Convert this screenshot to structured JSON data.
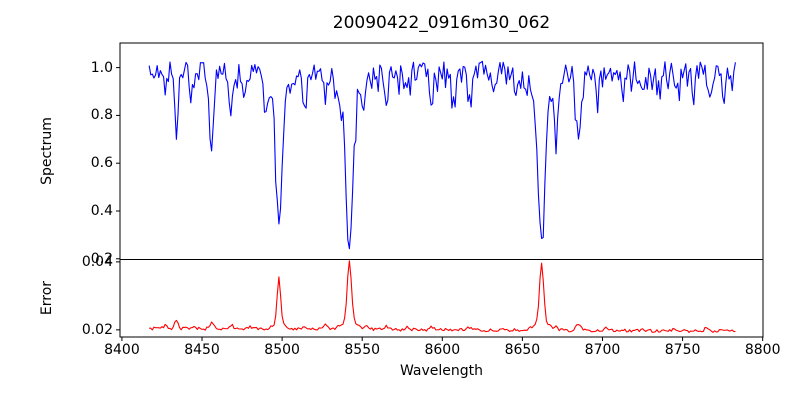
{
  "style": {
    "background": "#ffffff",
    "frame_color": "#000000",
    "text_color": "#000000"
  },
  "chart_data": {
    "type": "line",
    "title": "20090422_0916m30_062",
    "xlabel": "Wavelength",
    "xlim": [
      8398.8,
      8800.2
    ],
    "x_ticks": [
      {
        "v": 8400,
        "label": "8400"
      },
      {
        "v": 8450,
        "label": "8450"
      },
      {
        "v": 8500,
        "label": "8500"
      },
      {
        "v": 8550,
        "label": "8550"
      },
      {
        "v": 8600,
        "label": "8600"
      },
      {
        "v": 8650,
        "label": "8650"
      },
      {
        "v": 8700,
        "label": "8700"
      },
      {
        "v": 8750,
        "label": "8750"
      },
      {
        "v": 8800,
        "label": "8800"
      }
    ],
    "grid": false,
    "legend": false,
    "subplots": [
      {
        "ylabel": "Spectrum",
        "ylim": [
          0.197,
          1.103
        ],
        "y_ticks": [
          {
            "v": 1.0,
            "label": "1.0"
          },
          {
            "v": 0.8,
            "label": "0.8"
          },
          {
            "v": 0.6,
            "label": "0.6"
          },
          {
            "v": 0.4,
            "label": "0.4"
          },
          {
            "v": 0.2,
            "label": "0.2"
          }
        ],
        "series": {
          "name": "spectrum",
          "color": "#0000ff",
          "x_start": 8417,
          "x_end": 8783,
          "step": 1.0,
          "seed": 20090422,
          "baseline_start": 0.99,
          "baseline_end": 0.985,
          "noise": 0.04,
          "dip_prob": 0.3,
          "dip_extra": 0.08,
          "features": [
            {
              "center": 8427,
              "amp": -0.1,
              "width": 1.0
            },
            {
              "center": 8434,
              "amp": -0.26,
              "width": 1.2
            },
            {
              "center": 8443,
              "amp": -0.1,
              "width": 1.0
            },
            {
              "center": 8456,
              "amp": -0.33,
              "width": 1.4
            },
            {
              "center": 8468,
              "amp": -0.17,
              "width": 1.1
            },
            {
              "center": 8476,
              "amp": -0.1,
              "width": 1.0
            },
            {
              "center": 8490,
              "amp": -0.09,
              "width": 1.0
            },
            {
              "center": 8498,
              "amp": -0.5,
              "width": 1.8
            },
            {
              "center": 8498,
              "amp": -0.13,
              "width": 5.0
            },
            {
              "center": 8514,
              "amp": -0.16,
              "width": 1.1
            },
            {
              "center": 8527,
              "amp": -0.12,
              "width": 1.1
            },
            {
              "center": 8536,
              "amp": -0.1,
              "width": 1.0
            },
            {
              "center": 8542,
              "amp": -0.6,
              "width": 2.0
            },
            {
              "center": 8542,
              "amp": -0.13,
              "width": 6.0
            },
            {
              "center": 8551,
              "amp": -0.1,
              "width": 1.0
            },
            {
              "center": 8565,
              "amp": -0.12,
              "width": 1.1
            },
            {
              "center": 8578,
              "amp": -0.11,
              "width": 1.0
            },
            {
              "center": 8593,
              "amp": -0.13,
              "width": 1.1
            },
            {
              "center": 8607,
              "amp": -0.11,
              "width": 1.0
            },
            {
              "center": 8617,
              "amp": -0.14,
              "width": 1.1
            },
            {
              "center": 8632,
              "amp": -0.09,
              "width": 1.0
            },
            {
              "center": 8646,
              "amp": -0.11,
              "width": 1.0
            },
            {
              "center": 8662,
              "amp": -0.6,
              "width": 2.0
            },
            {
              "center": 8662,
              "amp": -0.13,
              "width": 6.0
            },
            {
              "center": 8671,
              "amp": -0.22,
              "width": 1.2
            },
            {
              "center": 8685,
              "amp": -0.3,
              "width": 1.6
            },
            {
              "center": 8697,
              "amp": -0.1,
              "width": 1.0
            },
            {
              "center": 8713,
              "amp": -0.11,
              "width": 1.0
            },
            {
              "center": 8725,
              "amp": -0.09,
              "width": 1.0
            },
            {
              "center": 8736,
              "amp": -0.1,
              "width": 1.0
            },
            {
              "center": 8747,
              "amp": -0.09,
              "width": 1.0
            },
            {
              "center": 8757,
              "amp": -0.1,
              "width": 1.0
            },
            {
              "center": 8767,
              "amp": -0.11,
              "width": 1.0
            },
            {
              "center": 8776,
              "amp": -0.12,
              "width": 1.1
            }
          ]
        }
      },
      {
        "ylabel": "Error",
        "ylim": [
          0.0179,
          0.0407
        ],
        "y_ticks": [
          {
            "v": 0.04,
            "label": "0.04"
          },
          {
            "v": 0.02,
            "label": "0.02"
          }
        ],
        "series": {
          "name": "error",
          "color": "#ff0000",
          "x_start": 8417,
          "x_end": 8783,
          "step": 1.0,
          "seed": 916062,
          "baseline_start": 0.0204,
          "baseline_end": 0.0196,
          "noise": 0.00045,
          "dip_prob": 0,
          "dip_extra": 0,
          "features": [
            {
              "center": 8427,
              "amp": 0.001,
              "width": 1.2
            },
            {
              "center": 8434,
              "amp": 0.0022,
              "width": 1.2
            },
            {
              "center": 8445,
              "amp": 0.0009,
              "width": 1.2
            },
            {
              "center": 8456,
              "amp": 0.0016,
              "width": 1.3
            },
            {
              "center": 8468,
              "amp": 0.0013,
              "width": 1.2
            },
            {
              "center": 8480,
              "amp": 0.0008,
              "width": 1.0
            },
            {
              "center": 8498,
              "amp": 0.0135,
              "width": 1.1
            },
            {
              "center": 8498,
              "amp": 0.0015,
              "width": 3.5
            },
            {
              "center": 8514,
              "amp": 0.001,
              "width": 1.2
            },
            {
              "center": 8527,
              "amp": 0.0016,
              "width": 1.2
            },
            {
              "center": 8542,
              "amp": 0.0175,
              "width": 1.3
            },
            {
              "center": 8542,
              "amp": 0.0025,
              "width": 4.5
            },
            {
              "center": 8553,
              "amp": 0.0011,
              "width": 1.2
            },
            {
              "center": 8565,
              "amp": 0.001,
              "width": 1.2
            },
            {
              "center": 8578,
              "amp": 0.001,
              "width": 1.2
            },
            {
              "center": 8593,
              "amp": 0.0009,
              "width": 1.2
            },
            {
              "center": 8617,
              "amp": 0.0008,
              "width": 1.2
            },
            {
              "center": 8662,
              "amp": 0.0172,
              "width": 1.3
            },
            {
              "center": 8662,
              "amp": 0.0024,
              "width": 4.5
            },
            {
              "center": 8671,
              "amp": 0.001,
              "width": 1.2
            },
            {
              "center": 8685,
              "amp": 0.0018,
              "width": 1.5
            },
            {
              "center": 8702,
              "amp": 0.0008,
              "width": 1.2
            },
            {
              "center": 8725,
              "amp": 0.0007,
              "width": 1.2
            },
            {
              "center": 8745,
              "amp": 0.0008,
              "width": 1.2
            },
            {
              "center": 8765,
              "amp": 0.0014,
              "width": 1.2
            }
          ]
        }
      }
    ]
  }
}
